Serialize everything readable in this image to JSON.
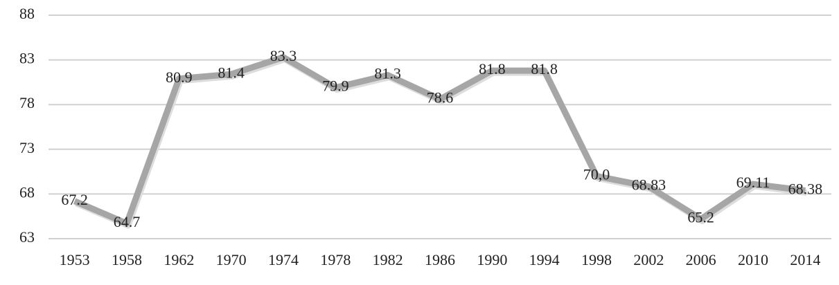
{
  "chart_data": {
    "type": "line",
    "categories": [
      "1953",
      "1958",
      "1962",
      "1970",
      "1974",
      "1978",
      "1982",
      "1986",
      "1990",
      "1994",
      "1998",
      "2002",
      "2006",
      "2010",
      "2014"
    ],
    "values": [
      67.2,
      64.7,
      80.9,
      81.4,
      83.3,
      79.9,
      81.3,
      78.6,
      81.8,
      81.8,
      70.0,
      68.83,
      65.2,
      69.11,
      68.38
    ],
    "value_labels": [
      "67.2",
      "64.7",
      "80.9",
      "81.4",
      "83.3",
      "79.9",
      "81.3",
      "78.6",
      "81.8",
      "81.8",
      "70,0",
      "68.83",
      "65.2",
      "69.11",
      "68.38"
    ],
    "color": "#a6a6a6",
    "ylim": [
      63,
      88
    ],
    "yticks": [
      63,
      68,
      73,
      78,
      83,
      88
    ],
    "grid": true
  }
}
